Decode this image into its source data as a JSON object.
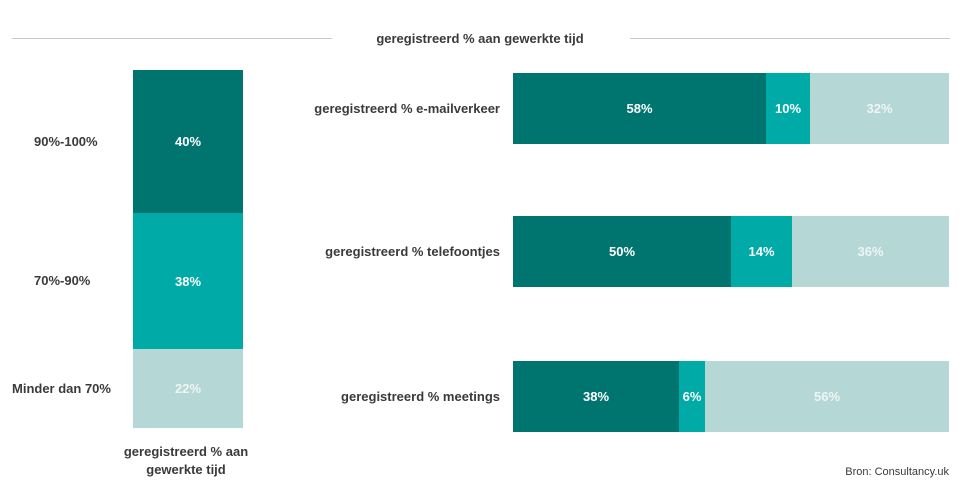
{
  "title": "geregistreerd % aan gewerkte tijd",
  "source": "Bron: Consultancy.uk",
  "colors": {
    "dark": "#00756f",
    "mid": "#00aaa6",
    "light": "#b5d7d5",
    "light_text": "#eef6f5"
  },
  "chart_data": [
    {
      "type": "bar",
      "orientation": "vertical-stacked",
      "xlabel": "geregistreerd % aan gewerkte tijd",
      "categories": [
        "90%-100%",
        "70%-90%",
        "Minder dan 70%"
      ],
      "values": [
        40,
        38,
        22
      ],
      "value_labels": [
        "40%",
        "38%",
        "22%"
      ]
    },
    {
      "type": "bar",
      "orientation": "horizontal-stacked",
      "categories": [
        "geregistreerd % e-mailverkeer",
        "geregistreerd % telefoontjes",
        "geregistreerd % meetings"
      ],
      "series": [
        {
          "values": [
            58,
            50,
            38
          ],
          "labels": [
            "58%",
            "50%",
            "38%"
          ]
        },
        {
          "values": [
            10,
            14,
            6
          ],
          "labels": [
            "10%",
            "14%",
            "6%"
          ]
        },
        {
          "values": [
            32,
            36,
            56
          ],
          "labels": [
            "32%",
            "36%",
            "56%"
          ]
        }
      ]
    }
  ]
}
